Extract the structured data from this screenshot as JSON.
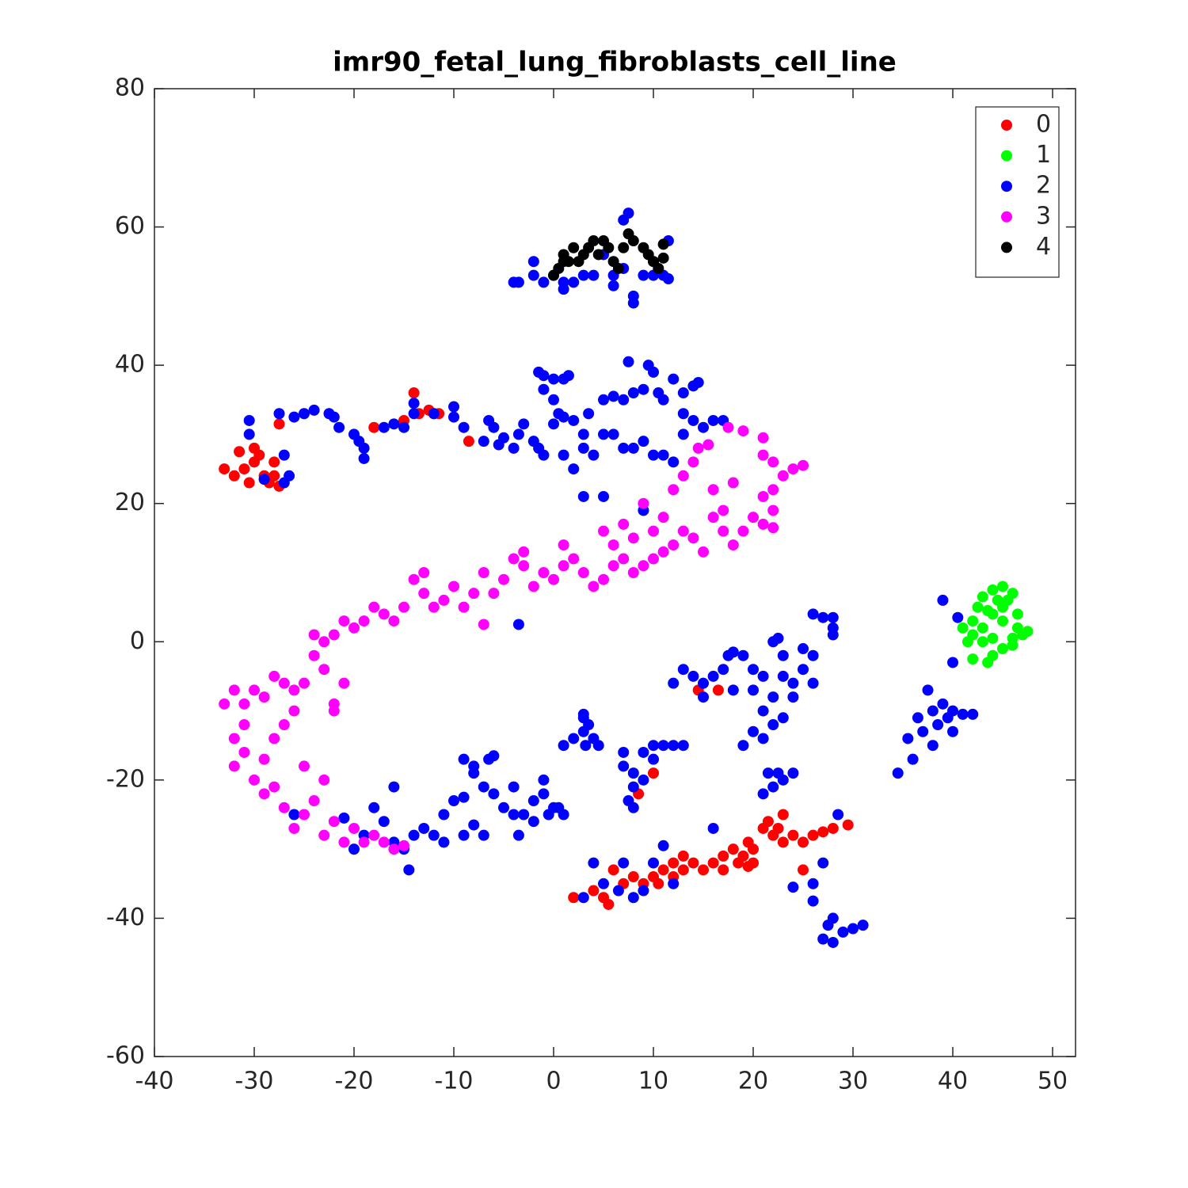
{
  "chart_data": {
    "type": "scatter",
    "title": "imr90_fetal_lung_fibroblasts_cell_line",
    "xlim": [
      -40,
      52.3
    ],
    "ylim": [
      -60,
      80
    ],
    "xticks": [
      -40,
      -30,
      -20,
      -10,
      0,
      10,
      20,
      30,
      40,
      50
    ],
    "yticks": [
      -60,
      -40,
      -20,
      0,
      20,
      40,
      60,
      80
    ],
    "legend": "top-right",
    "series": [
      {
        "name": "0",
        "color": "#ff0000",
        "x": [
          -31,
          -30,
          -29,
          -30.5,
          -29.5,
          -31.5,
          -28,
          -28.5,
          -32,
          -33,
          -27.5,
          -28,
          -30,
          -27.5,
          -14,
          -13.5,
          -12.5,
          -12,
          -11.5,
          -15,
          -18,
          -8.5,
          2,
          4,
          5,
          5.5,
          7,
          8,
          9,
          10,
          11,
          12,
          13,
          14,
          15,
          16,
          17,
          18,
          18.5,
          19,
          19.5,
          20,
          21,
          21.5,
          22,
          22.5,
          23,
          24,
          25,
          26,
          27,
          28,
          29.5,
          25,
          14.5,
          16.5,
          8.5,
          10,
          12,
          6,
          23,
          20,
          17,
          13,
          10.5,
          19.5
        ],
        "values": [
          25,
          26,
          24,
          23,
          27,
          27.5,
          26,
          23,
          24,
          25,
          22.5,
          24,
          28,
          31.5,
          36,
          33,
          33.5,
          33,
          33,
          32,
          31,
          29,
          -37,
          -36,
          -37,
          -38,
          -35,
          -34,
          -35,
          -34,
          -33,
          -32,
          -33,
          -32,
          -33,
          -32,
          -31,
          -30,
          -32,
          -31,
          -29,
          -32,
          -27,
          -26,
          -28,
          -27,
          -29,
          -28,
          -29,
          -28,
          -27.5,
          -27,
          -26.5,
          -33,
          -7,
          -7,
          -22,
          -19,
          -34,
          -33,
          -25,
          -30,
          -33,
          -31,
          -35,
          -32.5
        ]
      },
      {
        "name": "1",
        "color": "#00ff00",
        "x": [
          41,
          42,
          42.5,
          43,
          44,
          45,
          46,
          45,
          44,
          43,
          42,
          43,
          43.5,
          44,
          45,
          46,
          47,
          47.5,
          46.5,
          46.5,
          45.5,
          44.5,
          43.5,
          42,
          44,
          41.5,
          45,
          46
        ],
        "values": [
          2,
          3,
          5,
          6.5,
          7.5,
          8,
          7,
          5,
          4,
          2,
          1,
          0,
          -3,
          -2,
          -1,
          -0.5,
          1,
          1.5,
          2,
          4,
          6,
          6,
          4.5,
          -2.5,
          0.5,
          0,
          3,
          0.5
        ]
      },
      {
        "name": "2",
        "color": "#0000ff",
        "x": [
          -4,
          -3.5,
          -2,
          -2,
          -1,
          0,
          1,
          1,
          2,
          3,
          4,
          5,
          6,
          7,
          7.5,
          7,
          8,
          8,
          9,
          10,
          11,
          11.5,
          11.5,
          6,
          10,
          -30.5,
          -30.5,
          -29,
          -27,
          -26.5,
          -27,
          -27.5,
          -26,
          -25,
          -24,
          -22.5,
          -22,
          -21.5,
          -20,
          -19.5,
          -19,
          -19,
          -17,
          -16,
          -15,
          -14,
          -14,
          -12,
          -10,
          -10,
          -9,
          -7,
          -6.5,
          -6,
          -5.5,
          -5,
          -4,
          -3.5,
          -3,
          -2,
          -1.5,
          -1,
          0,
          1,
          2,
          3,
          3,
          4,
          5,
          6,
          7,
          8,
          9,
          10,
          11,
          12,
          13,
          14,
          15,
          16,
          17,
          -1,
          -1.5,
          -1,
          0,
          1,
          1.5,
          0,
          0.5,
          1,
          2,
          3.5,
          5,
          6,
          7,
          7.5,
          8,
          9,
          9.5,
          10,
          10.5,
          11,
          12,
          13,
          14,
          14.5,
          13,
          3,
          5,
          9,
          -3.5,
          12,
          13,
          14,
          15,
          16,
          15,
          17,
          17.5,
          18,
          18,
          19,
          20,
          20,
          21,
          21,
          22,
          22,
          22.5,
          23,
          23,
          24,
          24,
          25,
          25,
          26,
          26,
          26,
          27,
          28,
          28,
          28,
          20,
          19,
          21,
          22,
          23,
          21.5,
          22.5,
          23,
          24,
          21,
          22,
          9,
          10,
          11,
          12,
          13,
          7,
          7,
          8,
          8,
          7.5,
          8,
          9,
          10,
          3,
          3,
          3.5,
          3.2,
          4,
          2,
          1,
          4.5,
          3,
          34.5,
          35.5,
          36,
          36.5,
          37,
          37.5,
          38,
          38,
          38.5,
          39,
          39.5,
          40,
          40,
          41,
          42,
          40,
          39,
          40.5,
          -26,
          -21,
          -20,
          -19,
          -18,
          -17,
          -16,
          -16,
          -15,
          -14.5,
          -14,
          -13,
          -12,
          -11,
          -11,
          -10,
          -9,
          -9,
          -8,
          -7,
          -6.5,
          -6,
          -8,
          -9,
          -8,
          -7,
          -6,
          -5,
          -4,
          -4,
          -3.5,
          -3,
          -2,
          -2,
          -1,
          -1,
          -0.5,
          0,
          0.5,
          1,
          4,
          3,
          5,
          7,
          8,
          6.5,
          9,
          10,
          11,
          12,
          16,
          26,
          26,
          24,
          27,
          28.5,
          27,
          28,
          29,
          30,
          31,
          28,
          27.5
        ],
        "values": [
          52,
          52,
          55,
          53,
          52,
          53,
          52,
          51,
          52,
          53,
          53,
          56,
          53,
          54,
          62,
          61,
          50,
          49,
          53,
          53,
          53,
          52.5,
          58,
          51.5,
          55,
          32,
          30,
          23.5,
          27,
          24,
          23,
          33,
          32.5,
          33,
          33.5,
          33,
          32.5,
          31,
          30,
          29,
          28,
          26.5,
          31,
          31.5,
          31,
          33,
          34.5,
          33,
          32.5,
          34,
          31,
          29,
          32,
          31,
          28.5,
          29.5,
          28,
          30,
          31.5,
          29,
          28,
          27,
          31.5,
          27,
          25,
          28,
          30,
          27,
          30,
          30,
          28,
          28,
          29,
          27,
          27,
          26,
          30,
          32,
          31,
          32,
          32,
          36.5,
          39,
          38.5,
          38,
          38,
          38.5,
          35,
          33,
          32.5,
          32,
          33,
          35,
          35.5,
          35,
          40.5,
          36,
          36.5,
          40,
          39,
          36,
          35,
          38,
          36,
          37,
          37.5,
          33,
          21,
          21,
          19,
          2.5,
          -6,
          -4,
          -5,
          -6,
          -5,
          -8,
          -4,
          -2,
          -7,
          -1.5,
          -2,
          -4,
          -7,
          -5,
          -10,
          -8,
          0,
          0.5,
          -2,
          -5,
          -6,
          -8,
          -1,
          -4,
          -2,
          -6,
          4,
          3.5,
          3.5,
          1,
          2,
          -13,
          -15,
          -14,
          -12,
          -11,
          -19,
          -19,
          -20,
          -19,
          -22,
          -21,
          -16,
          -15,
          -15,
          -15,
          -15,
          -16,
          -18,
          -19,
          -21,
          -23,
          -24,
          -20,
          -17,
          -11,
          -13,
          -12,
          -15,
          -14,
          -14,
          -15,
          -15,
          -10.5,
          -19,
          -14,
          -17,
          -11,
          -13,
          -7,
          -10,
          -15,
          -12,
          -9,
          -11,
          -13,
          -10,
          -10.5,
          -10.5,
          -3,
          6,
          3.5,
          -25,
          -25.5,
          -30,
          -28,
          -24,
          -26,
          -21,
          -29,
          -30,
          -33,
          -28,
          -27,
          -28,
          -25,
          -29,
          -23,
          -22.5,
          -28,
          -26.5,
          -28,
          -17,
          -16.5,
          -18,
          -17,
          -19,
          -21,
          -22,
          -24,
          -25,
          -21,
          -28,
          -25,
          -23,
          -26,
          -22,
          -20,
          -25,
          -24,
          -24,
          -25,
          -32,
          -37,
          -35,
          -32,
          -37,
          -36,
          -36,
          -32,
          -29.5,
          -35,
          -27,
          -37.5,
          -35,
          -35.5,
          -32,
          -25,
          -43,
          -40,
          -42,
          -41.5,
          -41,
          -43.5,
          -41
        ]
      },
      {
        "name": "3",
        "color": "#ff00ff",
        "x": [
          17.5,
          19,
          21,
          21,
          22,
          23,
          24,
          25,
          22,
          21,
          22,
          21,
          22,
          20,
          19,
          18,
          17,
          17,
          16,
          15,
          14,
          13,
          12,
          11,
          10,
          9,
          8,
          7,
          6,
          5,
          4,
          3,
          2,
          1,
          0,
          -1,
          -2,
          -3,
          -4,
          -5,
          -6,
          -7,
          -8,
          -9,
          -10,
          -11,
          -12,
          -13,
          -14,
          -15,
          -16,
          -17,
          -18,
          -19,
          -20,
          -21,
          -22,
          -23,
          -24,
          -24,
          -23,
          -25,
          -26,
          -27,
          -28,
          -29,
          -30,
          -31,
          -32,
          -33,
          -32,
          -31,
          -32,
          -31,
          -30,
          -29,
          -28,
          -27,
          -26,
          -25,
          -24,
          -23,
          -22,
          -21,
          -20,
          -19,
          -18,
          -17,
          -16,
          -15,
          -22,
          -21,
          -22,
          -28,
          -27,
          -26,
          -29,
          -25,
          -23,
          -7,
          -13,
          -3,
          1,
          5,
          7,
          8,
          6,
          9,
          12,
          13,
          14,
          14.5,
          15.5,
          16,
          18,
          10,
          11
        ],
        "values": [
          31,
          30.5,
          29.5,
          27,
          26,
          24,
          25,
          25.5,
          22,
          21,
          19,
          17,
          16.5,
          18,
          16,
          14,
          16,
          19,
          18,
          13,
          15,
          16,
          14,
          13,
          12,
          11,
          10,
          12,
          11,
          9,
          8,
          10,
          12,
          11,
          9,
          10,
          8,
          11,
          12,
          9,
          7,
          10,
          7,
          5,
          8,
          6,
          5,
          7,
          9,
          5,
          3,
          4,
          5,
          3,
          2,
          3,
          1,
          0,
          -2,
          1,
          -4,
          -6,
          -7,
          -6,
          -5,
          -8,
          -7,
          -9,
          -7,
          -9,
          -14,
          -12,
          -18,
          -16,
          -20,
          -22,
          -21,
          -24,
          -27,
          -25,
          -23,
          -28,
          -26,
          -29,
          -27,
          -29,
          -28,
          -29,
          -30,
          -29.5,
          -9,
          -6,
          -10,
          -14,
          -12,
          -10,
          -17,
          -18,
          -20,
          2.5,
          10,
          13,
          14,
          16,
          17,
          15,
          14,
          20,
          22,
          24,
          26,
          28,
          28.5,
          22,
          23,
          16,
          18
        ]
      },
      {
        "name": "4",
        "color": "#000000",
        "x": [
          0,
          0.5,
          1,
          1.5,
          2,
          3,
          3.5,
          4,
          4.5,
          5,
          5.5,
          6,
          6.5,
          7,
          7.5,
          8,
          9,
          9.5,
          10,
          10.5,
          11,
          11,
          2.5,
          1
        ],
        "values": [
          53,
          54,
          56,
          55,
          57,
          56,
          57,
          58,
          56,
          58,
          57,
          55,
          54,
          57,
          59,
          58,
          57,
          56,
          55,
          54,
          55.5,
          57.5,
          55,
          55
        ]
      }
    ]
  }
}
